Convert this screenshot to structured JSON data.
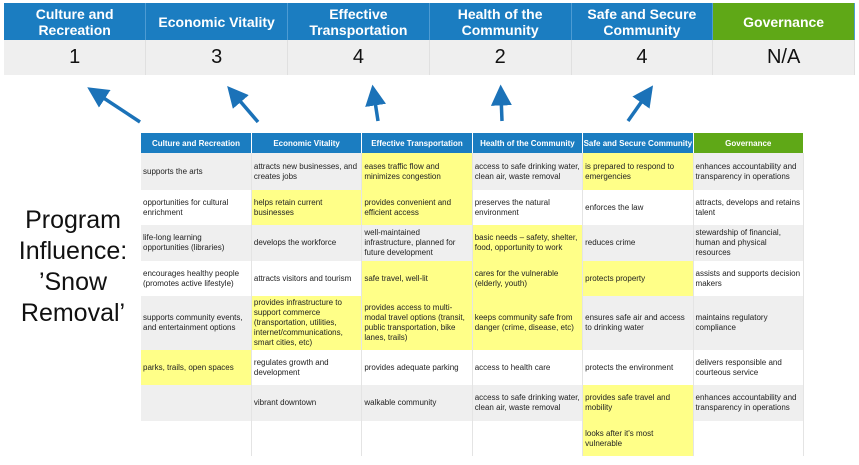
{
  "scores": {
    "headers": [
      "Culture and Recreation",
      "Economic Vitality",
      "Effective Transportation",
      "Health of the Community",
      "Safe and Secure Community",
      "Governance"
    ],
    "values": [
      "1",
      "3",
      "4",
      "2",
      "4",
      "N/A"
    ]
  },
  "program_label": "Program Influence: ’Snow Removal’",
  "colors": {
    "blue": "#1b7dc1",
    "green": "#5fa817",
    "highlight": "#ffff88"
  },
  "grid": {
    "headers": [
      "Culture and Recreation",
      "Economic Vitality",
      "Effective Transportation",
      "Health of the Community",
      "Safe and Secure Community",
      "Governance"
    ],
    "rows": [
      [
        {
          "t": "supports the arts"
        },
        {
          "t": "attracts new businesses, and creates jobs"
        },
        {
          "t": "eases traffic flow and minimizes congestion",
          "h": true
        },
        {
          "t": "access to safe drinking water, clean air, waste removal"
        },
        {
          "t": "is prepared to respond to emergencies",
          "h": true
        },
        {
          "t": "enhances accountability and transparency in operations"
        }
      ],
      [
        {
          "t": "opportunities for cultural enrichment"
        },
        {
          "t": "helps retain current businesses",
          "h": true
        },
        {
          "t": "provides convenient and efficient access",
          "h": true
        },
        {
          "t": "preserves the natural environment"
        },
        {
          "t": "enforces the law"
        },
        {
          "t": "attracts, develops and retains talent"
        }
      ],
      [
        {
          "t": "life-long learning opportunities (libraries)"
        },
        {
          "t": "develops the workforce"
        },
        {
          "t": "well-maintained infrastructure, planned for future development"
        },
        {
          "t": "basic needs – safety, shelter, food, opportunity to work",
          "h": true
        },
        {
          "t": "reduces crime"
        },
        {
          "t": "stewardship of financial, human and physical resources"
        }
      ],
      [
        {
          "t": "encourages healthy people (promotes active lifestyle)"
        },
        {
          "t": "attracts visitors and tourism"
        },
        {
          "t": "safe travel, well-lit",
          "h": true
        },
        {
          "t": "cares for the vulnerable (elderly, youth)",
          "h": true
        },
        {
          "t": "protects property",
          "h": true
        },
        {
          "t": "assists and supports decision makers"
        }
      ],
      [
        {
          "t": "supports community events, and entertainment options"
        },
        {
          "t": "provides infrastructure to support commerce (transportation, utilities, internet/communications, smart cities, etc)",
          "h": true
        },
        {
          "t": "provides access to multi-modal travel options (transit, public transportation, bike lanes, trails)",
          "h": true
        },
        {
          "t": "keeps community safe from danger (crime, disease, etc)",
          "h": true
        },
        {
          "t": "ensures safe air and access to drinking water"
        },
        {
          "t": "maintains regulatory compliance"
        }
      ],
      [
        {
          "t": "parks, trails, open spaces",
          "h": true
        },
        {
          "t": "regulates growth and development"
        },
        {
          "t": "provides adequate parking"
        },
        {
          "t": "access to health care"
        },
        {
          "t": "protects the environment"
        },
        {
          "t": "delivers responsible and courteous service"
        }
      ],
      [
        {
          "t": ""
        },
        {
          "t": "vibrant downtown"
        },
        {
          "t": "walkable community"
        },
        {
          "t": "access to safe drinking water, clean air, waste removal"
        },
        {
          "t": "provides safe travel and mobility",
          "h": true
        },
        {
          "t": "enhances accountability and transparency in operations"
        }
      ],
      [
        {
          "t": ""
        },
        {
          "t": ""
        },
        {
          "t": ""
        },
        {
          "t": ""
        },
        {
          "t": "looks after it's most vulnerable",
          "h": true
        },
        {
          "t": ""
        }
      ]
    ]
  }
}
